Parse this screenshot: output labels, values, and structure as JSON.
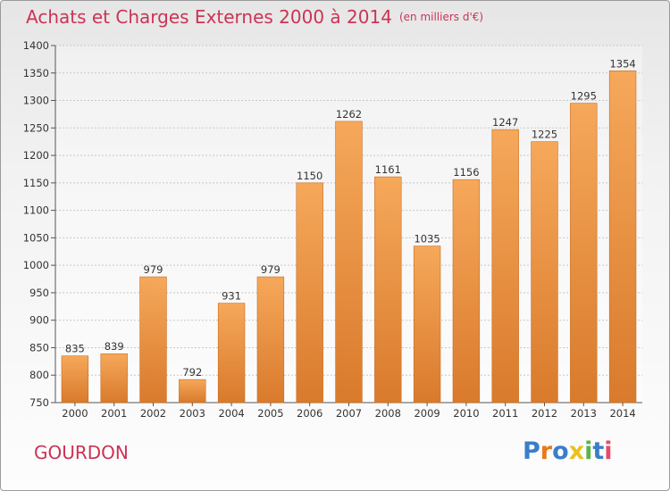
{
  "title": {
    "main": "Achats et Charges Externes 2000 à 2014",
    "unit": "(en milliers d'€)"
  },
  "commune": "GOURDON",
  "logo": {
    "text": "Proxiti",
    "letter_colors": [
      "#3a7ec8",
      "#e87a1e",
      "#3a7ec8",
      "#e8c21e",
      "#5ab34a",
      "#3a7ec8",
      "#e84a6a"
    ]
  },
  "colors": {
    "bar_light": "#f6a85a",
    "bar_dark": "#d97a2c",
    "title": "#cc3355",
    "grid": "#c8c8c8"
  },
  "chart_data": {
    "type": "bar",
    "categories": [
      "2000",
      "2001",
      "2002",
      "2003",
      "2004",
      "2005",
      "2006",
      "2007",
      "2008",
      "2009",
      "2010",
      "2011",
      "2012",
      "2013",
      "2014"
    ],
    "values": [
      835,
      839,
      979,
      792,
      931,
      979,
      1150,
      1262,
      1161,
      1035,
      1156,
      1247,
      1225,
      1295,
      1354
    ],
    "ylim": [
      750,
      1400
    ],
    "yticks": [
      750,
      800,
      850,
      900,
      950,
      1000,
      1050,
      1100,
      1150,
      1200,
      1250,
      1300,
      1350,
      1400
    ],
    "grid": true
  }
}
